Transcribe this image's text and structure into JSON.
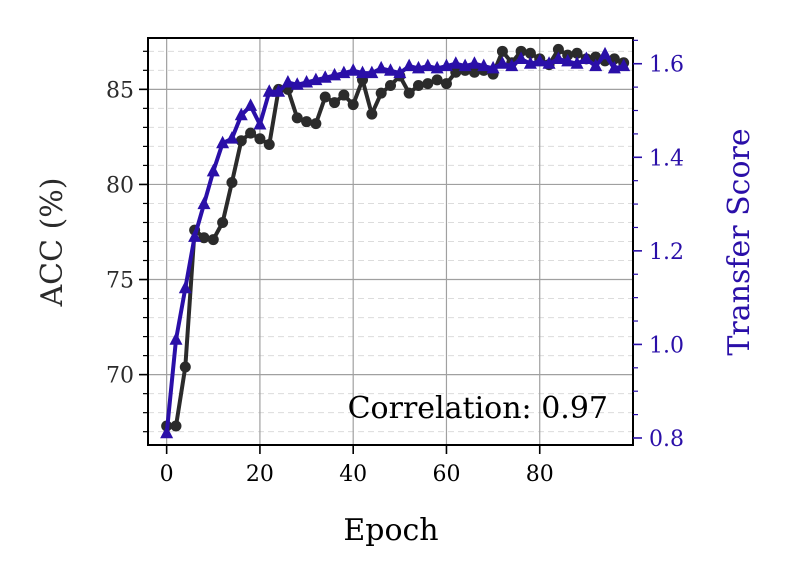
{
  "chart_data": {
    "type": "line",
    "title": "",
    "xlabel": "Epoch",
    "ylabel": "ACC (%)",
    "y2label": "Transfer Score",
    "xlim": [
      -4,
      100
    ],
    "ylim": [
      66.3,
      87.7
    ],
    "y2lim": [
      0.785,
      1.655
    ],
    "x_ticks": [
      0,
      20,
      40,
      60,
      80
    ],
    "y_ticks": [
      70,
      75,
      80,
      85
    ],
    "y2_ticks": [
      0.8,
      1.0,
      1.2,
      1.4,
      1.6
    ],
    "x_tick_labels": [
      "0",
      "20",
      "40",
      "60",
      "80"
    ],
    "y_tick_labels": [
      "70",
      "75",
      "80",
      "85"
    ],
    "y2_tick_labels": [
      "0.8",
      "1.0",
      "1.2",
      "1.4",
      "1.6"
    ],
    "grid": true,
    "annotation": "Correlation: 0.97",
    "colors": {
      "acc": "#2b2b2b",
      "transfer": "#2a0fa8",
      "grid": "#a0a0a0",
      "minor_grid": "#dcdcdc"
    },
    "x": [
      0,
      2,
      4,
      6,
      8,
      10,
      12,
      14,
      16,
      18,
      20,
      22,
      24,
      26,
      28,
      30,
      32,
      34,
      36,
      38,
      40,
      42,
      44,
      46,
      48,
      50,
      52,
      54,
      56,
      58,
      60,
      62,
      64,
      66,
      68,
      70,
      72,
      74,
      76,
      78,
      80,
      82,
      84,
      86,
      88,
      90,
      92,
      94,
      96,
      98
    ],
    "series": [
      {
        "name": "ACC",
        "axis": "left",
        "marker": "circle",
        "values": [
          67.3,
          67.3,
          70.4,
          77.6,
          77.2,
          77.1,
          78.0,
          80.1,
          82.3,
          82.7,
          82.4,
          82.1,
          85.0,
          85.0,
          83.5,
          83.3,
          83.2,
          84.6,
          84.3,
          84.7,
          84.2,
          85.5,
          83.7,
          84.8,
          85.2,
          85.7,
          84.8,
          85.2,
          85.3,
          85.5,
          85.3,
          85.9,
          86.0,
          85.9,
          86.0,
          85.8,
          87.0,
          86.4,
          87.0,
          86.9,
          86.6,
          86.3,
          87.1,
          86.8,
          86.9,
          86.6,
          86.7,
          86.5,
          86.6,
          86.4
        ]
      },
      {
        "name": "Transfer Score",
        "axis": "right",
        "marker": "triangle",
        "values": [
          0.81,
          1.01,
          1.12,
          1.23,
          1.3,
          1.37,
          1.43,
          1.44,
          1.49,
          1.51,
          1.47,
          1.54,
          1.54,
          1.56,
          1.555,
          1.56,
          1.565,
          1.57,
          1.575,
          1.58,
          1.585,
          1.58,
          1.58,
          1.59,
          1.585,
          1.58,
          1.595,
          1.59,
          1.595,
          1.59,
          1.595,
          1.6,
          1.595,
          1.6,
          1.595,
          1.59,
          1.6,
          1.595,
          1.61,
          1.6,
          1.605,
          1.6,
          1.61,
          1.605,
          1.6,
          1.61,
          1.595,
          1.62,
          1.59,
          1.595
        ]
      }
    ]
  }
}
